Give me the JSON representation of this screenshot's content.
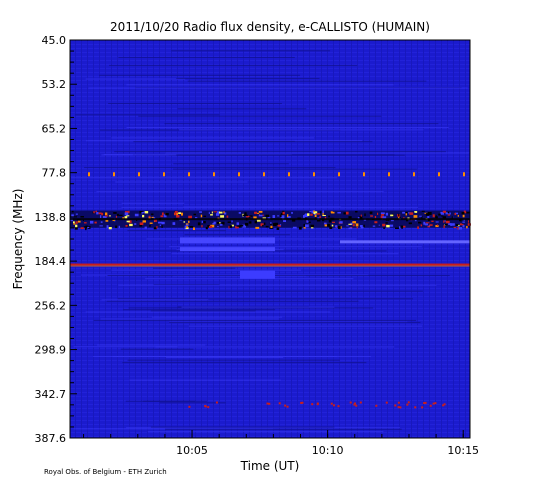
{
  "chart_data": {
    "type": "heatmap",
    "title": "2011/10/20  Radio flux density, e-CALLISTO (HUMAIN)",
    "xlabel": "Time (UT)",
    "ylabel": "Frequency (MHz)",
    "y_ticks": [
      "45.0",
      "53.2",
      "65.2",
      "77.8",
      "138.8",
      "184.4",
      "256.2",
      "298.9",
      "342.7",
      "387.6"
    ],
    "x_ticks": [
      "10:05",
      "10:10",
      "10:15"
    ],
    "x_range": [
      "10:00:30",
      "10:15:15"
    ],
    "y_range": [
      45.0,
      387.6
    ],
    "colormap": [
      "#0a0a64",
      "#1a1ad2",
      "#3c3cff",
      "#c81e1e",
      "#ff8c00",
      "#ffff64",
      "#ffffff"
    ],
    "features": [
      {
        "name": "intense band",
        "freq_range": [
          130,
          150
        ],
        "time_range": [
          "10:00:30",
          "10:15:15"
        ]
      },
      {
        "name": "persistent line",
        "freq": 190
      }
    ]
  },
  "footer": {
    "credit": "Royal Obs. of Belgium - ETH Zurich"
  }
}
